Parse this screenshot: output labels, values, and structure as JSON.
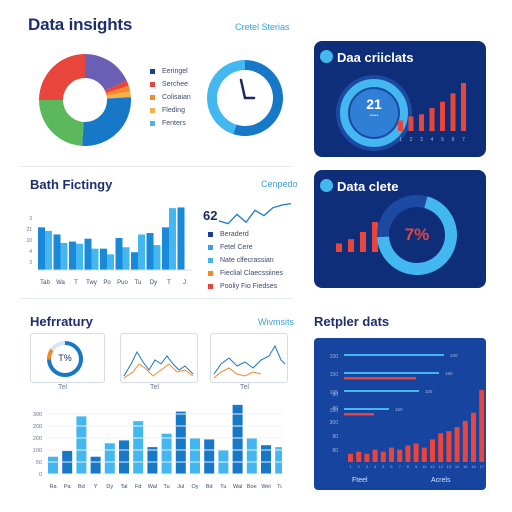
{
  "header": {
    "title": "Data insights",
    "link": "Cretel Sterias"
  },
  "donut_panel": {
    "legend": [
      {
        "label": "Eeringel",
        "color": "#1a3f8e"
      },
      {
        "label": "Serchee",
        "color": "#e8453c"
      },
      {
        "label": "Colisaian",
        "color": "#f08a2a"
      },
      {
        "label": "Fleding",
        "color": "#f5b04a"
      },
      {
        "label": "Fenters",
        "color": "#4ab4ea"
      }
    ]
  },
  "dark_panel_1": {
    "title": "Daa criiclats",
    "gauge_value": "21",
    "gauge_sub": "•••••"
  },
  "bar_section": {
    "title": "Bath Fictingy",
    "link": "Cenpedo",
    "line_value": "62",
    "legend": [
      {
        "label": "Beraderd",
        "color": "#1a3f8e"
      },
      {
        "label": "Fetel Cere",
        "color": "#3aa0e0"
      },
      {
        "label": "Nate clfecrassian",
        "color": "#4ab4ea"
      },
      {
        "label": "Fieclial Claecssiines",
        "color": "#f08a2a"
      },
      {
        "label": "Pooliy Fio Fiedses",
        "color": "#e8453c"
      }
    ]
  },
  "dark_panel_2": {
    "title": "Data clete",
    "gauge_value": "7%"
  },
  "mid_section": {
    "title": "Hefrratury",
    "link": "Wivmsits",
    "gauge_value": "T%",
    "card_labels": [
      "Tel",
      "Tel",
      "Tel"
    ]
  },
  "dark_panel_3": {
    "title": "Retpler dats",
    "footer_labels": [
      "Fteel",
      "Acrels"
    ]
  },
  "colors": {
    "navy": "#0f2e7a",
    "blue": "#1778c8",
    "light_blue": "#43b7f0",
    "red": "#e8453c",
    "orange": "#f08a2a",
    "green": "#5cb85c",
    "purple": "#6a5fb5"
  },
  "chart_data": [
    {
      "type": "pie",
      "title": "",
      "donut": true,
      "slices": [
        {
          "label": "Eeringel",
          "value": 18,
          "color": "#6a5fb5"
        },
        {
          "label": "Serchee",
          "value": 2,
          "color": "#e8453c"
        },
        {
          "label": "Colisaian",
          "value": 2,
          "color": "#f08a2a"
        },
        {
          "label": "Fleding",
          "value": 2,
          "color": "#f5b04a"
        },
        {
          "label": "Fenters",
          "value": 27,
          "color": "#1778c8"
        },
        {
          "label": "",
          "value": 24,
          "color": "#5cb85c"
        },
        {
          "label": "",
          "value": 25,
          "color": "#e8453c"
        }
      ]
    },
    {
      "type": "pie",
      "title": "",
      "donut": true,
      "slices": [
        {
          "label": "",
          "value": 55,
          "color": "#1778c8"
        },
        {
          "label": "",
          "value": 45,
          "color": "#43b7f0"
        }
      ]
    },
    {
      "type": "bar",
      "title": "Daa criiclats",
      "categories": [
        "1",
        "2",
        "3",
        "4",
        "5",
        "6",
        "7"
      ],
      "values": [
        10,
        14,
        16,
        22,
        28,
        36,
        46
      ],
      "colors": [
        "#e8453c"
      ]
    },
    {
      "type": "bar",
      "title": "Bath Fictingy",
      "categories": [
        "Tab",
        "Wa",
        "T",
        "Twy",
        "Po",
        "Puo",
        "Tu",
        "Dy",
        "T",
        "J"
      ],
      "series": [
        {
          "values": [
            60,
            50,
            40,
            44,
            30,
            45,
            25,
            52,
            60,
            88
          ]
        },
        {
          "values": [
            55,
            38,
            37,
            30,
            22,
            32,
            50,
            35,
            87,
            0
          ]
        }
      ],
      "ylabels": [
        "3",
        "21",
        "10",
        "4",
        "3"
      ]
    },
    {
      "type": "line",
      "title": "",
      "x": [
        0,
        1,
        2,
        3,
        4,
        5,
        6,
        7,
        8
      ],
      "values": [
        62,
        58,
        72,
        60,
        78,
        70,
        82,
        86,
        88
      ]
    },
    {
      "type": "bar",
      "title": "Data clete",
      "categories": [
        "1",
        "2",
        "3",
        "4"
      ],
      "values": [
        12,
        18,
        28,
        42
      ],
      "colors": [
        "#e8453c"
      ]
    },
    {
      "type": "pie",
      "title": "",
      "donut": true,
      "slices": [
        {
          "label": "",
          "value": 70,
          "color": "#43b7f0"
        },
        {
          "label": "",
          "value": 30,
          "color": "#1c4aa3"
        }
      ]
    },
    {
      "type": "bar",
      "title": "Hefrratury",
      "categories": [
        "Ra",
        "Pa",
        "Bd",
        "Y",
        "Dy",
        "Tal",
        "Fd",
        "Wal",
        "Tu",
        "Jul",
        "Oy",
        "Bd",
        "Tu",
        "Wal",
        "Boe",
        "Wel",
        "Tu",
        "Da"
      ],
      "values": [
        18,
        24,
        60,
        18,
        32,
        35,
        55,
        28,
        42,
        65,
        38,
        36,
        25,
        72,
        38,
        30,
        28,
        36
      ],
      "ylabels": [
        "300",
        "200",
        "200",
        "100",
        "50",
        "0"
      ]
    },
    {
      "type": "bar",
      "title": "Retpler dats",
      "orientation": "horizontal",
      "series": [
        {
          "name": "",
          "values": [
            100,
            95,
            75,
            45
          ],
          "color": "#43b7f0"
        },
        {
          "name": "",
          "values": [
            0,
            72,
            0,
            30
          ],
          "color": "#e8453c"
        }
      ],
      "ylabels": [
        "100",
        "150",
        "105",
        "150"
      ]
    },
    {
      "type": "bar",
      "title": "",
      "categories": [
        "1",
        "2",
        "3",
        "4",
        "5",
        "6",
        "7",
        "8",
        "9",
        "10",
        "11",
        "12",
        "13",
        "14",
        "15",
        "16",
        "17"
      ],
      "values": [
        8,
        10,
        8,
        12,
        10,
        14,
        12,
        16,
        18,
        14,
        22,
        28,
        30,
        34,
        40,
        48,
        70
      ],
      "colors": [
        "#e8453c"
      ],
      "ylabels": [
        "80",
        "80",
        "300",
        "80",
        "80"
      ]
    }
  ]
}
